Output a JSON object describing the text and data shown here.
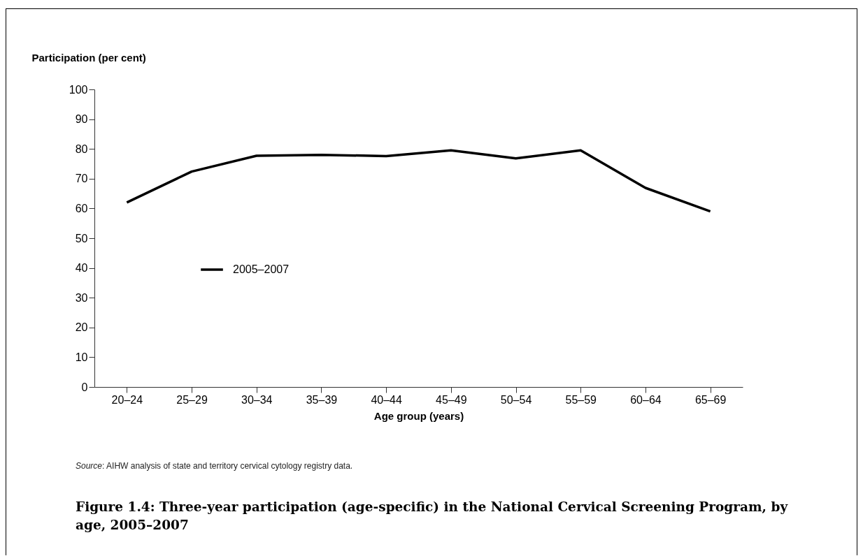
{
  "chart_data": {
    "type": "line",
    "title": "Figure 1.4: Three-year participation (age-specific) in the National Cervical Screening Program, by age, 2005–2007",
    "xlabel": "Age group (years)",
    "ylabel": "Participation (per cent)",
    "categories": [
      "20–24",
      "25–29",
      "30–34",
      "35–39",
      "40–44",
      "45–49",
      "50–54",
      "55–59",
      "60–64",
      "65–69"
    ],
    "series": [
      {
        "name": "2005–2007",
        "color": "#000000",
        "values": [
          62.0,
          72.4,
          77.7,
          78.0,
          77.6,
          79.5,
          76.8,
          79.5,
          66.9,
          59.0
        ]
      }
    ],
    "ylim": [
      0,
      100
    ],
    "yticks": [
      0,
      10,
      20,
      30,
      40,
      50,
      60,
      70,
      80,
      90,
      100
    ],
    "grid": false,
    "legend": "left",
    "marker": "none",
    "line_style": "solid",
    "annotations": [
      "Source: AIHW analysis of state and territory cervical cytology registry data."
    ]
  }
}
